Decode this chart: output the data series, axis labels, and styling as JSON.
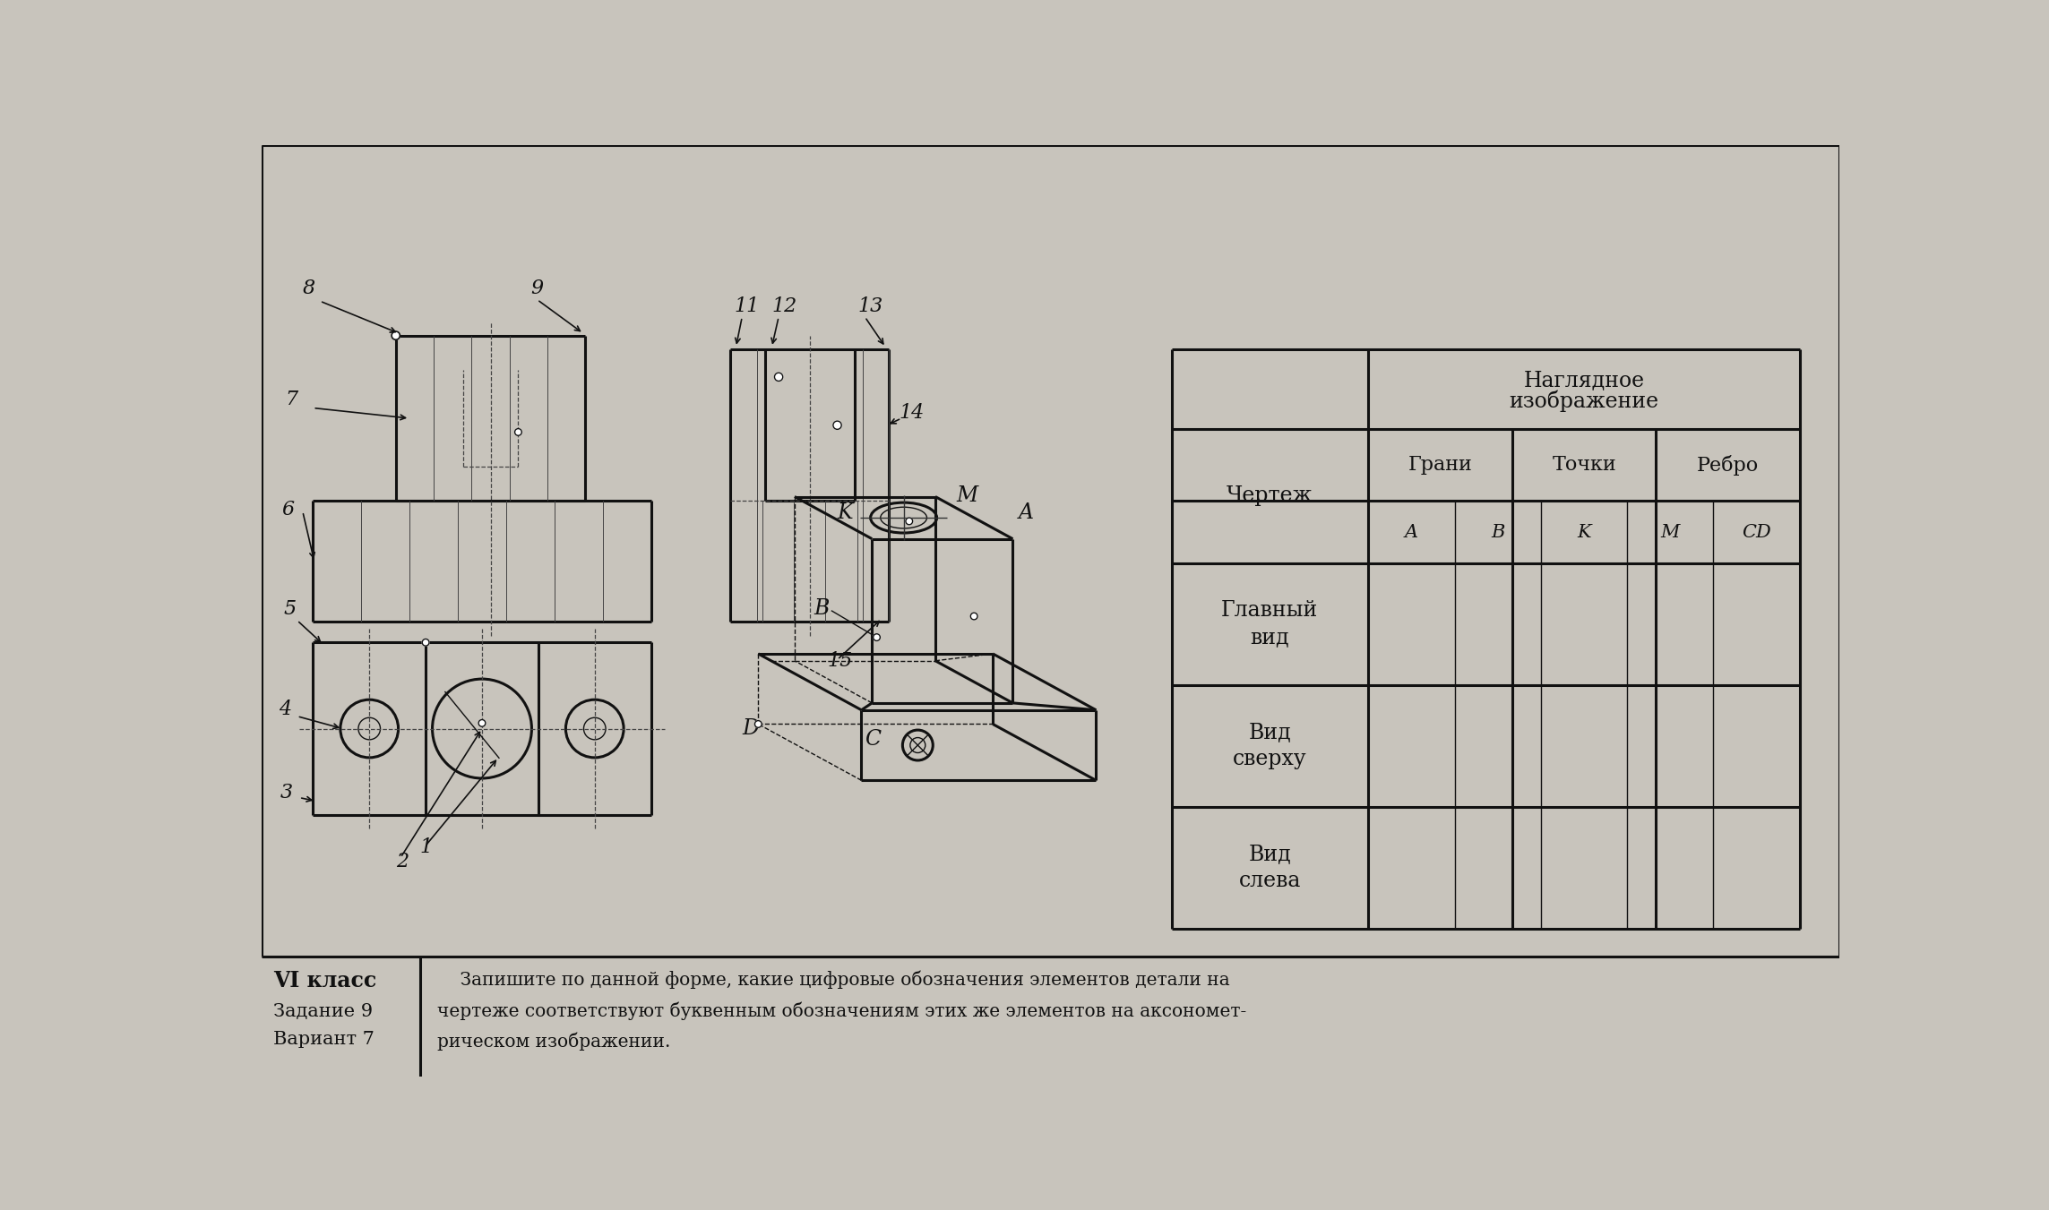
{
  "bg_color": "#c8c4bc",
  "line_color": "#111111",
  "footer_text_1": "VI класс",
  "footer_text_2": "Задание 9",
  "footer_text_3": "Вариант 7",
  "letters_row": [
    "A",
    "B",
    "K",
    "M",
    "CD"
  ],
  "row_labels": [
    "Главный\nвид",
    "Вид\nсверху",
    "Вид\nслева"
  ]
}
